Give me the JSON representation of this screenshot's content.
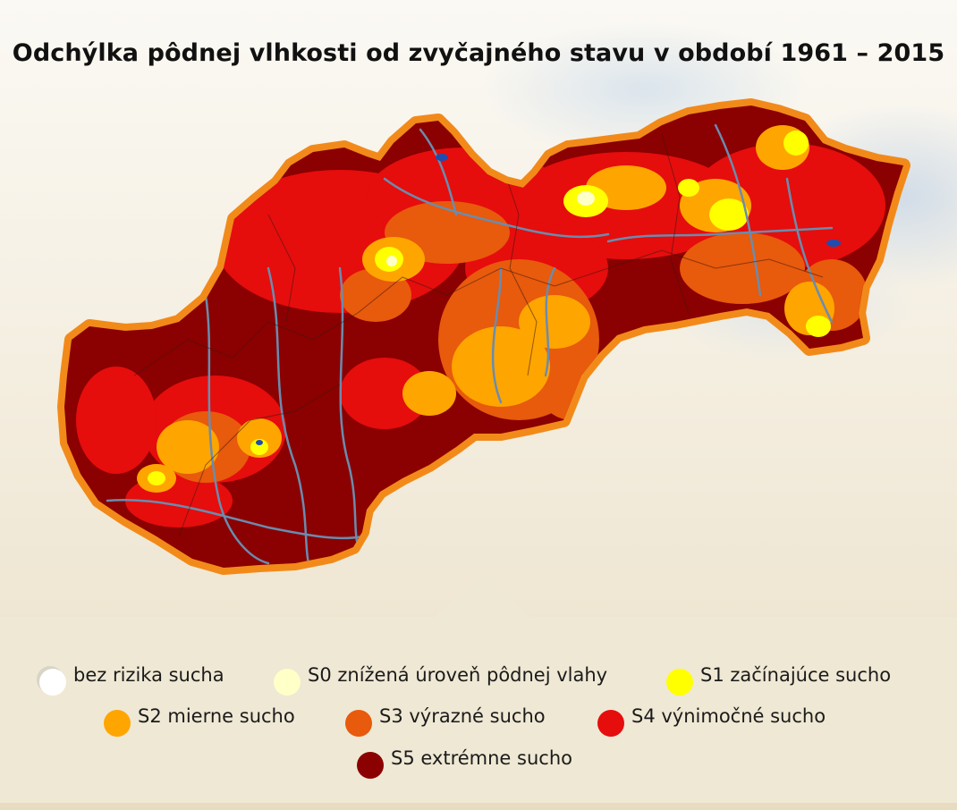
{
  "title": "Odchýlka pôdnej vlhkosti od zvyčajného stavu v období 1961 – 2015",
  "legend": [
    {
      "label": "bez rizika sucha",
      "color": "#ffffff"
    },
    {
      "label": "S0 znížená úroveň pôdnej vlahy",
      "color": "#ffffc8"
    },
    {
      "label": "S1 začínajúce sucho",
      "color": "#ffff00"
    },
    {
      "label": "S2 mierne sucho",
      "color": "#ffa500"
    },
    {
      "label": "S3 výrazné sucho",
      "color": "#e85a0c"
    },
    {
      "label": "S4 výnimočné sucho",
      "color": "#e60d0d"
    },
    {
      "label": "S5 extrémne sucho",
      "color": "#8b0000"
    }
  ],
  "colors": {
    "border": "#f28a1a",
    "river": "#6a8caf",
    "district": "#3a1a10"
  }
}
